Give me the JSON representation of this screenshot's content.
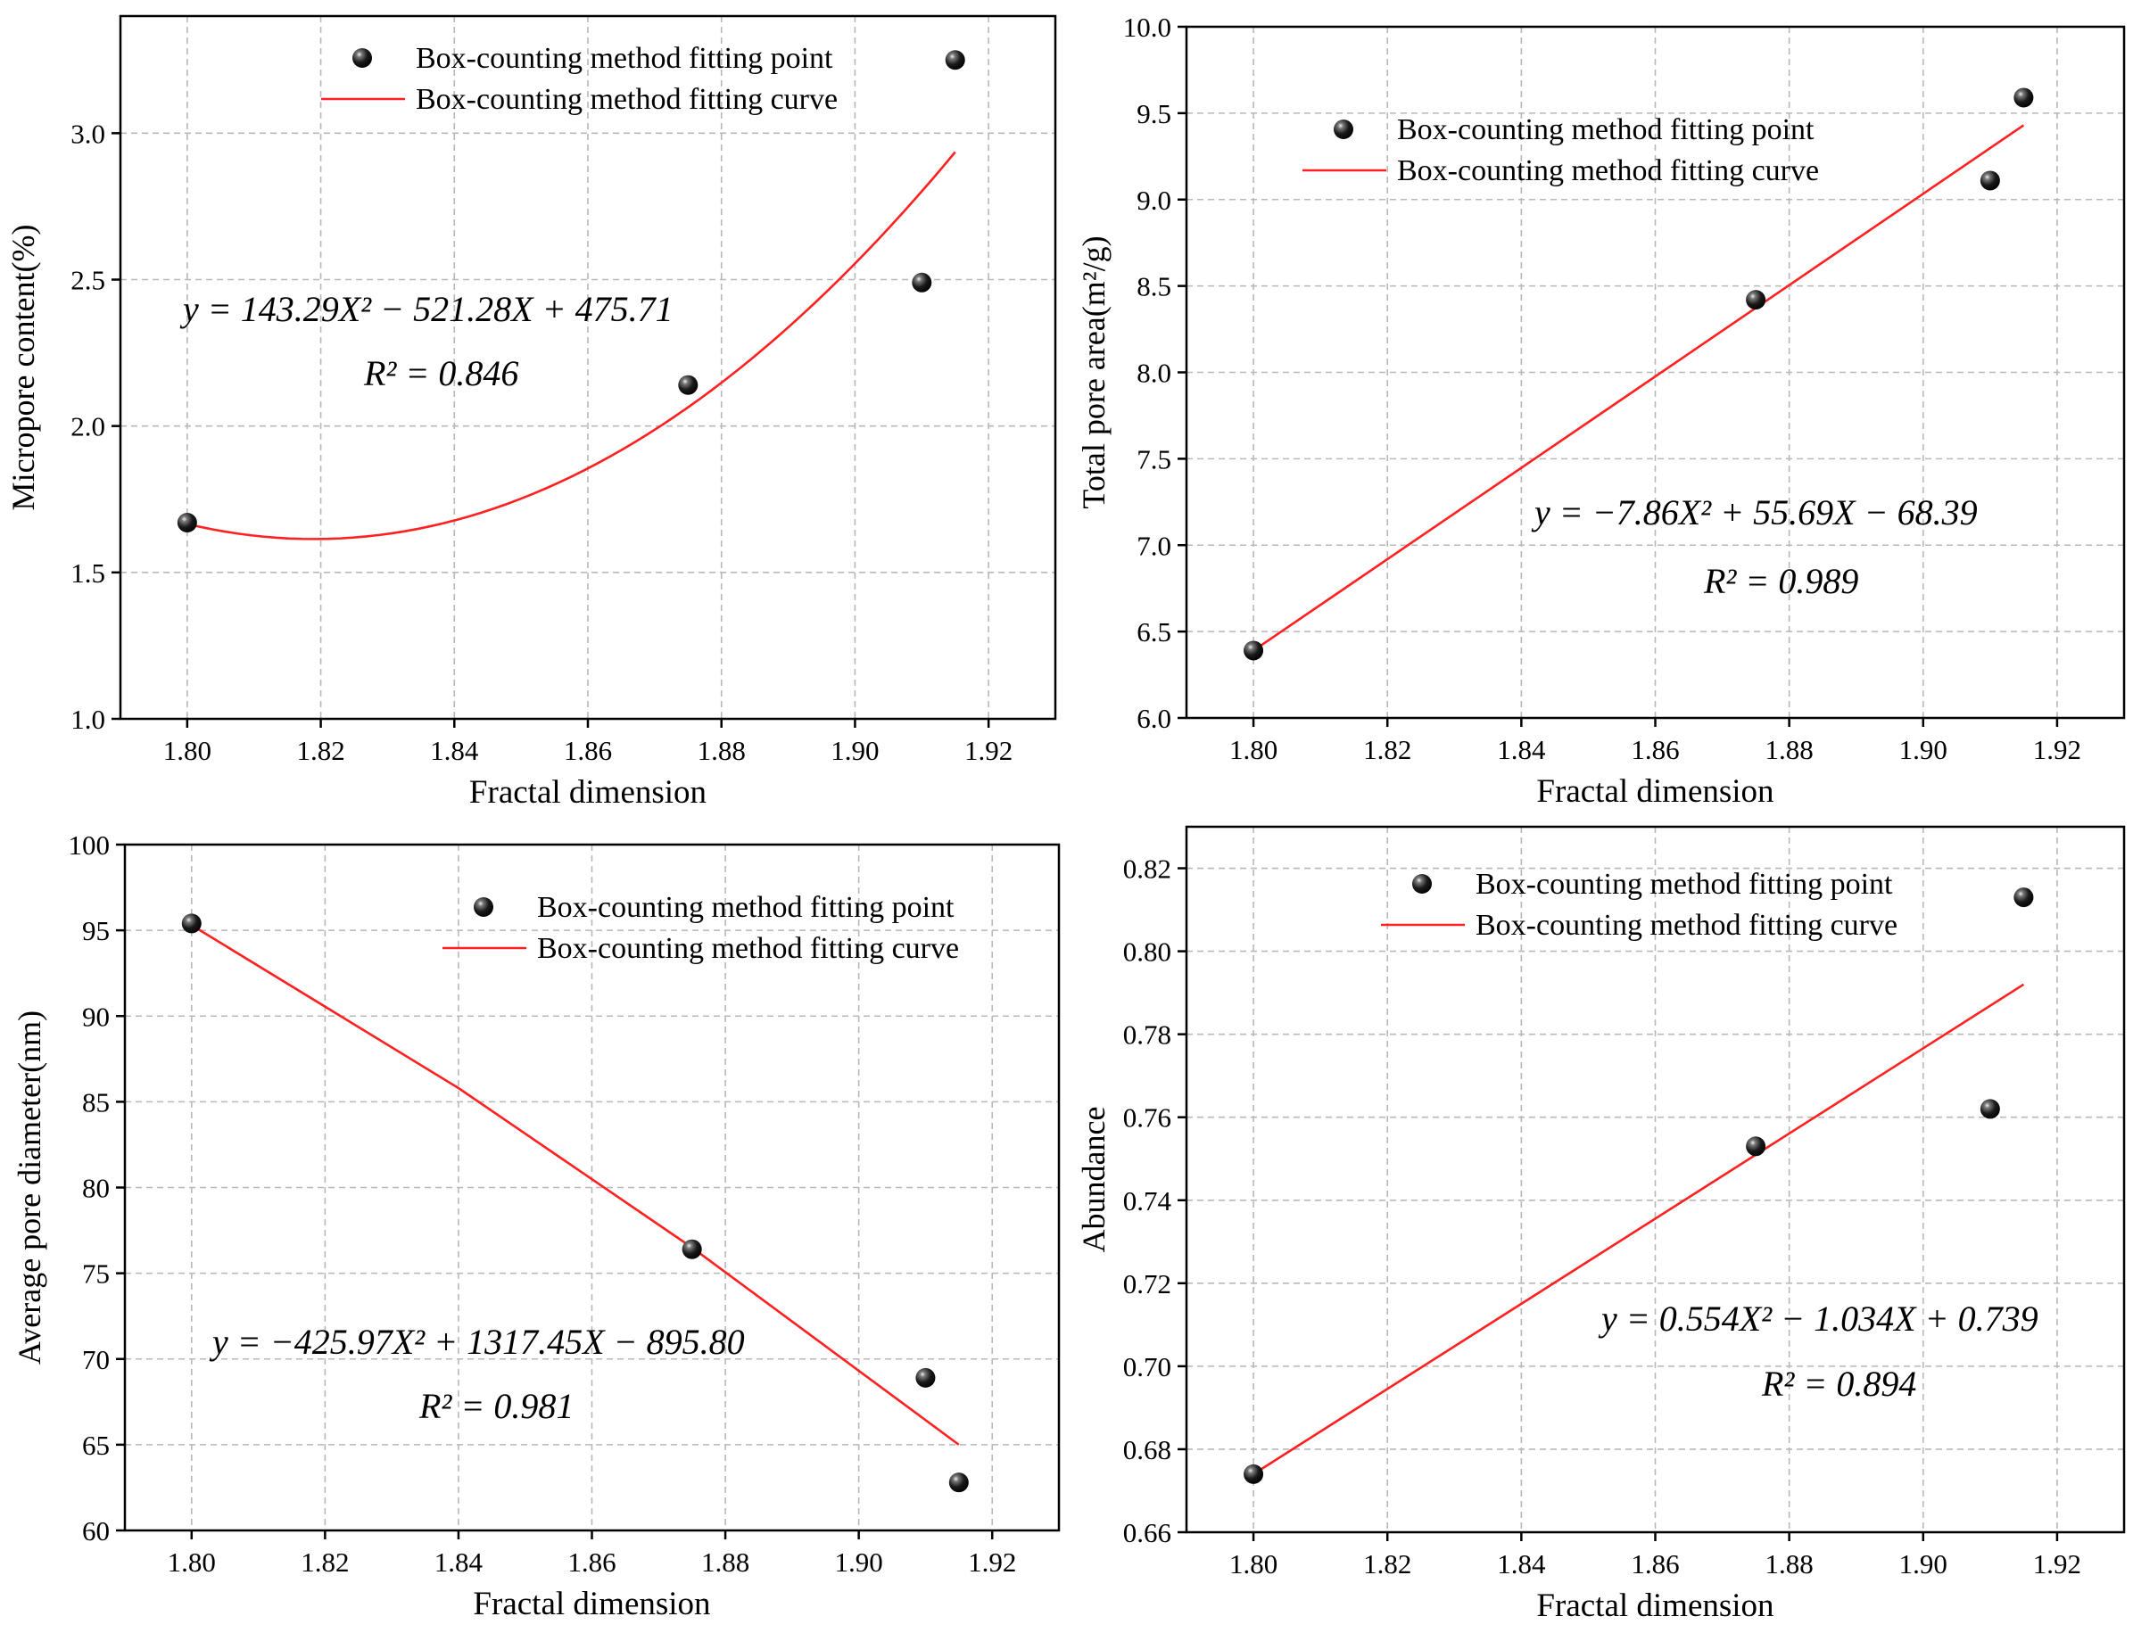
{
  "legend": {
    "point_label": "Box-counting method fitting point",
    "curve_label": "Box-counting method fitting curve"
  },
  "colors": {
    "curve": "#ff2020",
    "point": "#111111",
    "grid": "#b8b8b8",
    "axis": "#000000"
  },
  "chart_data": [
    {
      "type": "scatter",
      "position": "top-left",
      "xlabel": "Fractal dimension",
      "ylabel": "Micropore content(%)",
      "xlim": [
        1.79,
        1.93
      ],
      "ylim": [
        1.0,
        3.4
      ],
      "xticks": [
        1.8,
        1.82,
        1.84,
        1.86,
        1.88,
        1.9,
        1.92
      ],
      "xtick_labels": [
        "1.80",
        "1.82",
        "1.84",
        "1.86",
        "1.88",
        "1.90",
        "1.92"
      ],
      "yticks": [
        1.0,
        1.5,
        2.0,
        2.5,
        3.0
      ],
      "ytick_labels": [
        "1.0",
        "1.5",
        "2.0",
        "2.5",
        "3.0"
      ],
      "grid": true,
      "legend_position": "top-right",
      "points": {
        "x": [
          1.8,
          1.875,
          1.91,
          1.915
        ],
        "y": [
          1.67,
          2.14,
          2.49,
          3.25
        ]
      },
      "fit": {
        "a": 143.29,
        "b": -521.28,
        "c": 475.71,
        "x_range": [
          1.8,
          1.915
        ]
      },
      "equation": "y = 143.29X² − 521.28X + 475.71",
      "r2": "R² = 0.846"
    },
    {
      "type": "scatter",
      "position": "top-right",
      "xlabel": "Fractal dimension",
      "ylabel": "Total pore area(m²/g)",
      "xlim": [
        1.79,
        1.93
      ],
      "ylim": [
        6.0,
        10.0
      ],
      "xticks": [
        1.8,
        1.82,
        1.84,
        1.86,
        1.88,
        1.9,
        1.92
      ],
      "xtick_labels": [
        "1.80",
        "1.82",
        "1.84",
        "1.86",
        "1.88",
        "1.90",
        "1.92"
      ],
      "yticks": [
        6.0,
        6.5,
        7.0,
        7.5,
        8.0,
        8.5,
        9.0,
        9.5,
        10.0
      ],
      "ytick_labels": [
        "6.0",
        "6.5",
        "7.0",
        "7.5",
        "8.0",
        "8.5",
        "9.0",
        "9.5",
        "10.0"
      ],
      "grid": true,
      "legend_position": "top-center",
      "points": {
        "x": [
          1.8,
          1.875,
          1.91,
          1.915
        ],
        "y": [
          6.39,
          8.42,
          9.11,
          9.59
        ]
      },
      "fit": {
        "a": -7.86,
        "b": 55.69,
        "c": -68.39,
        "x_range": [
          1.8,
          1.915
        ]
      },
      "fit_line": {
        "x": [
          1.8,
          1.915
        ],
        "y": [
          6.39,
          9.43
        ]
      },
      "equation": "y = −7.86X² + 55.69X − 68.39",
      "r2": "R² = 0.989"
    },
    {
      "type": "scatter",
      "position": "bottom-left",
      "xlabel": "Fractal dimension",
      "ylabel": "Average pore diameter(nm)",
      "xlim": [
        1.79,
        1.93
      ],
      "ylim": [
        60,
        100
      ],
      "xticks": [
        1.8,
        1.82,
        1.84,
        1.86,
        1.88,
        1.9,
        1.92
      ],
      "xtick_labels": [
        "1.80",
        "1.82",
        "1.84",
        "1.86",
        "1.88",
        "1.90",
        "1.92"
      ],
      "yticks": [
        60,
        65,
        70,
        75,
        80,
        85,
        90,
        95,
        100
      ],
      "ytick_labels": [
        "60",
        "65",
        "70",
        "75",
        "80",
        "85",
        "90",
        "95",
        "100"
      ],
      "grid": true,
      "legend_position": "top-right",
      "points": {
        "x": [
          1.8,
          1.875,
          1.91,
          1.915
        ],
        "y": [
          95.4,
          76.4,
          68.9,
          62.8
        ]
      },
      "fit": {
        "a": -425.97,
        "b": 1317.45,
        "c": -895.8,
        "x_range": [
          1.8,
          1.915
        ]
      },
      "fit_line": {
        "x": [
          1.8,
          1.84,
          1.875,
          1.915
        ],
        "y": [
          95.3,
          85.8,
          76.5,
          65.0
        ]
      },
      "equation": "y = −425.97X² + 1317.45X − 895.80",
      "r2": "R² = 0.981"
    },
    {
      "type": "scatter",
      "position": "bottom-right",
      "xlabel": "Fractal dimension",
      "ylabel": "Abundance",
      "xlim": [
        1.79,
        1.93
      ],
      "ylim": [
        0.66,
        0.83
      ],
      "xticks": [
        1.8,
        1.82,
        1.84,
        1.86,
        1.88,
        1.9,
        1.92
      ],
      "xtick_labels": [
        "1.80",
        "1.82",
        "1.84",
        "1.86",
        "1.88",
        "1.90",
        "1.92"
      ],
      "yticks": [
        0.66,
        0.68,
        0.7,
        0.72,
        0.74,
        0.76,
        0.78,
        0.8,
        0.82
      ],
      "ytick_labels": [
        "0.66",
        "0.68",
        "0.70",
        "0.72",
        "0.74",
        "0.76",
        "0.78",
        "0.80",
        "0.82"
      ],
      "grid": true,
      "legend_position": "top-center",
      "points": {
        "x": [
          1.8,
          1.875,
          1.91,
          1.915
        ],
        "y": [
          0.674,
          0.753,
          0.762,
          0.813
        ]
      },
      "fit": {
        "a": 0.554,
        "b": -1.034,
        "c": 0.739,
        "x_range": [
          1.8,
          1.915
        ]
      },
      "fit_line": {
        "x": [
          1.8,
          1.915
        ],
        "y": [
          0.674,
          0.792
        ]
      },
      "equation": "y = 0.554X² − 1.034X + 0.739",
      "r2": "R² = 0.894"
    }
  ]
}
